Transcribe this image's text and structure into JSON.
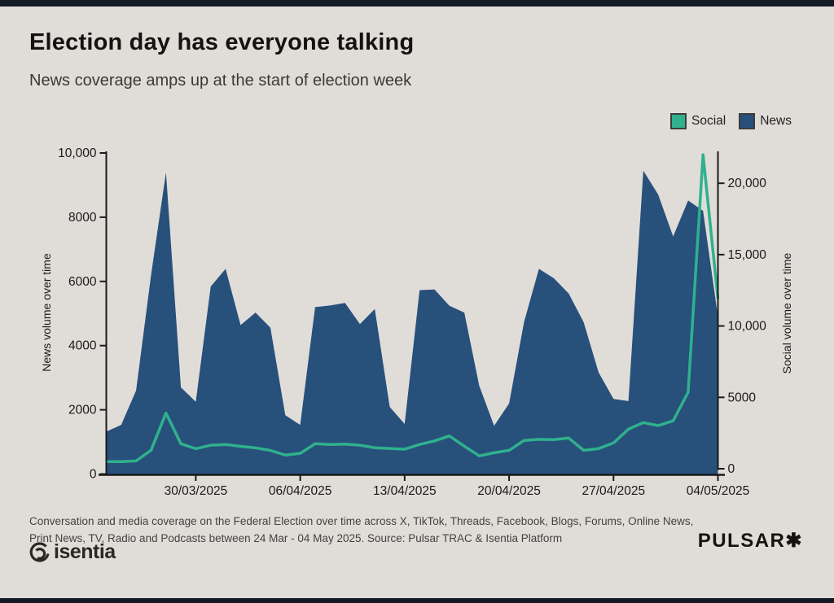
{
  "page": {
    "background_color": "#e0ddd9",
    "edge_bar_color": "#131a24"
  },
  "header": {
    "title": "Election day has everyone talking",
    "subtitle": "News coverage amps up at the start of election week"
  },
  "legend": [
    {
      "label": "Social",
      "color": "#2fb18d"
    },
    {
      "label": "News",
      "color": "#27507b"
    }
  ],
  "footer": {
    "caption": "Conversation and media coverage on the Federal Election over time across X, TikTok, Threads, Facebook, Blogs, Forums, Online News, Print News, TV, Radio and Podcasts between 24 Mar - 04 May 2025. Source: Pulsar TRAC & Isentia Platform",
    "isentia_text": "isentia",
    "pulsar_text": "PULSAR",
    "pulsar_mark": "✱"
  },
  "chart_data": {
    "type": "area",
    "title": "Election day has everyone talking",
    "subtitle": "News coverage amps up at the start of election week",
    "grid": false,
    "legend_position": "top-right",
    "x": [
      "24/03/2025",
      "25/03/2025",
      "26/03/2025",
      "27/03/2025",
      "28/03/2025",
      "29/03/2025",
      "30/03/2025",
      "31/03/2025",
      "01/04/2025",
      "02/04/2025",
      "03/04/2025",
      "04/04/2025",
      "05/04/2025",
      "06/04/2025",
      "07/04/2025",
      "08/04/2025",
      "09/04/2025",
      "10/04/2025",
      "11/04/2025",
      "12/04/2025",
      "13/04/2025",
      "14/04/2025",
      "15/04/2025",
      "16/04/2025",
      "17/04/2025",
      "18/04/2025",
      "19/04/2025",
      "20/04/2025",
      "21/04/2025",
      "22/04/2025",
      "23/04/2025",
      "24/04/2025",
      "25/04/2025",
      "26/04/2025",
      "27/04/2025",
      "28/04/2025",
      "29/04/2025",
      "30/04/2025",
      "01/05/2025",
      "02/05/2025",
      "03/05/2025",
      "04/05/2025"
    ],
    "series": [
      {
        "name": "Social",
        "style": "line",
        "axis": "right",
        "color": "#2fb18d",
        "values": [
          500,
          500,
          550,
          1300,
          3900,
          1750,
          1400,
          1650,
          1700,
          1570,
          1460,
          1280,
          960,
          1080,
          1750,
          1700,
          1720,
          1650,
          1470,
          1420,
          1370,
          1700,
          1950,
          2300,
          1580,
          900,
          1120,
          1290,
          1980,
          2060,
          2040,
          2150,
          1290,
          1410,
          1810,
          2770,
          3230,
          3020,
          3360,
          5360,
          22000,
          11900
        ]
      },
      {
        "name": "News",
        "style": "area",
        "axis": "left",
        "color": "#27507b",
        "values": [
          1320,
          1530,
          2600,
          6200,
          9400,
          2700,
          2250,
          5840,
          6390,
          4640,
          5030,
          4560,
          1830,
          1530,
          5200,
          5250,
          5330,
          4670,
          5140,
          2090,
          1560,
          5730,
          5750,
          5240,
          5030,
          2750,
          1500,
          2200,
          4730,
          6390,
          6100,
          5620,
          4730,
          3160,
          2340,
          2270,
          9450,
          8700,
          7400,
          8520,
          8200,
          4900
        ]
      }
    ],
    "left_axis": {
      "label": "News volume over time",
      "range": [
        0,
        10000
      ],
      "tick_values": [
        0,
        2000,
        4000,
        6000,
        8000,
        10000
      ],
      "tick_labels": [
        "0",
        "2000",
        "4000",
        "6000",
        "8000",
        "10,000"
      ]
    },
    "right_axis": {
      "label": "Social volume over time",
      "range": [
        0,
        22000
      ],
      "tick_values": [
        0,
        5000,
        10000,
        15000,
        20000
      ],
      "tick_labels": [
        "0",
        "5000",
        "10,000",
        "15,000",
        "20,000"
      ]
    },
    "x_axis": {
      "tick_days": [
        6,
        13,
        20,
        27,
        34,
        41
      ],
      "tick_labels": [
        "30/03/2025",
        "06/04/2025",
        "13/04/2025",
        "20/04/2025",
        "27/04/2025",
        "04/05/2025"
      ]
    }
  }
}
